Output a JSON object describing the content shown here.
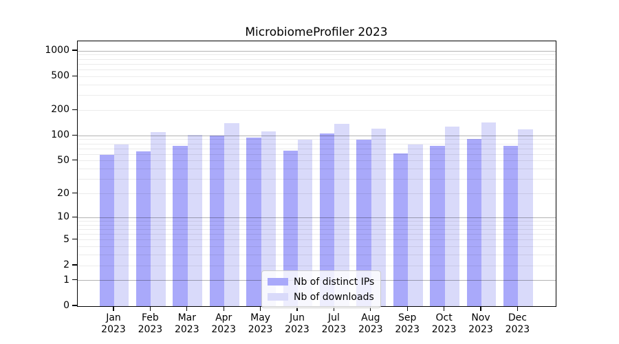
{
  "title": "MicrobiomeProfiler 2023",
  "chart_data": {
    "type": "bar",
    "title": "MicrobiomeProfiler 2023",
    "categories": [
      "Jan 2023",
      "Feb 2023",
      "Mar 2023",
      "Apr 2023",
      "May 2023",
      "Jun 2023",
      "Jul 2023",
      "Aug 2023",
      "Sep 2023",
      "Oct 2023",
      "Nov 2023",
      "Dec 2023"
    ],
    "series": [
      {
        "name": "Nb of distinct IPs",
        "color": "#a9a9fa",
        "values": [
          59,
          65,
          76,
          101,
          95,
          66,
          107,
          90,
          62,
          76,
          92,
          76
        ]
      },
      {
        "name": "Nb of downloads",
        "color": "#d9dafa",
        "values": [
          79,
          110,
          102,
          140,
          112,
          89,
          139,
          122,
          79,
          127,
          144,
          118
        ]
      }
    ],
    "y_scale": "log10(value+1)",
    "y_axis_max": 1300,
    "y_tick_values": [
      0,
      1,
      2,
      5,
      10,
      20,
      50,
      100,
      200,
      500,
      1000
    ],
    "y_tick_labels": [
      "0",
      "1",
      "2",
      "5",
      "10",
      "20",
      "50",
      "100",
      "200",
      "500",
      "1000"
    ],
    "grid": {
      "major_lines": [
        1,
        10,
        100,
        1000
      ],
      "minor_lines": [
        2,
        3,
        4,
        5,
        6,
        7,
        8,
        9,
        20,
        30,
        40,
        50,
        60,
        70,
        80,
        90,
        200,
        300,
        400,
        500,
        600,
        700,
        800,
        900
      ]
    },
    "legend_position": "lower center",
    "xlabel": "",
    "ylabel": ""
  },
  "colors": {
    "bar_distinct_ips": "#a9a9fa",
    "bar_downloads": "#d9dafa",
    "grid_major": "rgba(0,0,0,0.30)",
    "grid_minor": "rgba(0,0,0,0.08)",
    "axis": "#000000",
    "legend_border": "#cccccc"
  }
}
